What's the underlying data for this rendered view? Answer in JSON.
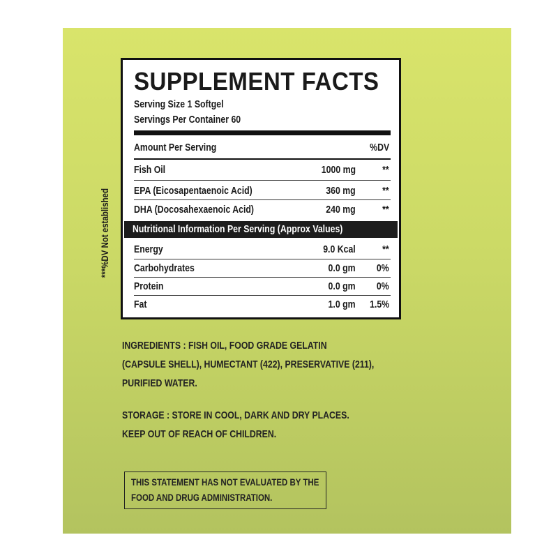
{
  "title": "SUPPLEMENT FACTS",
  "serving_size": "Serving Size 1 Softgel",
  "servings_per_container": "Servings Per Container 60",
  "header": {
    "amount": "Amount Per Serving",
    "dv": "%DV"
  },
  "rows": [
    {
      "name": "Fish Oil",
      "amount": "1000 mg",
      "dv": "**"
    },
    {
      "name": "EPA (Eicosapentaenoic Acid)",
      "amount": "360 mg",
      "dv": "**"
    },
    {
      "name": "DHA (Docosahexaenoic Acid)",
      "amount": "240 mg",
      "dv": "**"
    }
  ],
  "nutrition_band": "Nutritional Information Per Serving (Approx Values)",
  "nutrition_rows": [
    {
      "name": "Energy",
      "amount": "9.0 Kcal",
      "dv": "**"
    },
    {
      "name": "Carbohydrates",
      "amount": "0.0 gm",
      "dv": "0%"
    },
    {
      "name": "Protein",
      "amount": "0.0 gm",
      "dv": "0%"
    },
    {
      "name": "Fat",
      "amount": "1.0 gm",
      "dv": "1.5%"
    }
  ],
  "side_note": "***%DV Not established",
  "ingredients": [
    "INGREDIENTS : FISH OIL, FOOD GRADE GELATIN",
    "(CAPSULE SHELL), HUMECTANT (422), PRESERVATIVE (211),",
    "PURIFIED WATER."
  ],
  "storage": [
    "STORAGE : STORE IN COOL, DARK AND DRY PLACES.",
    "KEEP OUT OF REACH OF CHILDREN."
  ],
  "statement": [
    "THIS STATEMENT HAS NOT EVALUATED BY THE",
    "FOOD AND DRUG ADMINISTRATION."
  ],
  "colors": {
    "background_top": "#d9e46b",
    "background_bottom": "#b3c35f",
    "ink": "#1a1a1a"
  }
}
